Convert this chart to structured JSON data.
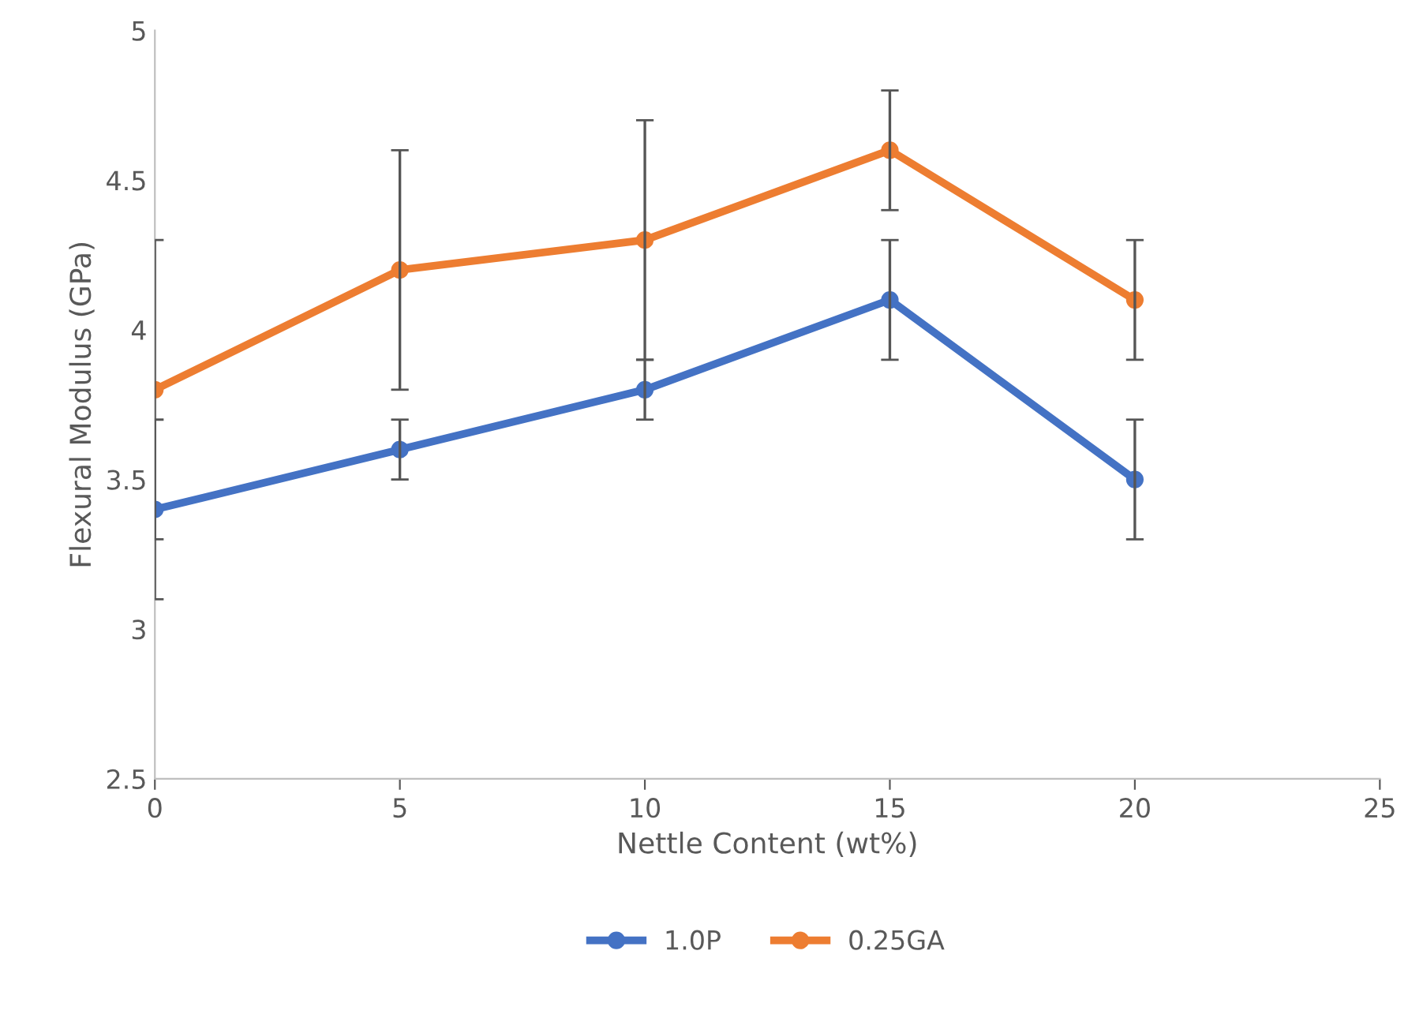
{
  "chart_data": {
    "type": "line",
    "xlabel": "Nettle Content (wt%)",
    "ylabel": "Flexural Modulus (GPa)",
    "x": [
      0,
      5,
      10,
      15,
      20
    ],
    "series": [
      {
        "name": "1.0P",
        "color": "#4472c4",
        "values": [
          3.4,
          3.6,
          3.8,
          4.1,
          3.5
        ],
        "errors": [
          0.3,
          0.1,
          0.1,
          0.2,
          0.2
        ]
      },
      {
        "name": "0.25GA",
        "color": "#ed7d31",
        "values": [
          3.8,
          4.2,
          4.3,
          4.6,
          4.1
        ],
        "errors": [
          0.5,
          0.4,
          0.4,
          0.2,
          0.2
        ]
      }
    ],
    "xlim": [
      0,
      25
    ],
    "xticks": [
      0,
      5,
      10,
      15,
      20,
      25
    ],
    "ylim": [
      2.5,
      5
    ],
    "yticks": [
      2.5,
      3,
      3.5,
      4,
      4.5,
      5
    ],
    "grid": false,
    "legend": "bottom",
    "marker": "circle",
    "line_style": "solid"
  }
}
